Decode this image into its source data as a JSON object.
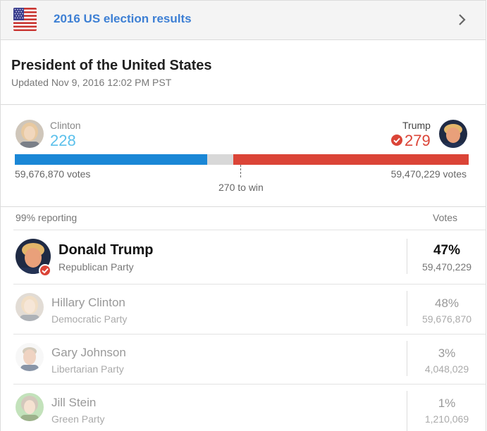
{
  "header": {
    "title": "2016 US election results",
    "flag_icon": "us-flag-icon",
    "chevron_icon": "chevron-right-icon"
  },
  "race": {
    "title": "President of the United States",
    "updated": "Updated Nov 9, 2016 12:02 PM PST"
  },
  "summary": {
    "left": {
      "name": "Clinton",
      "electoral": "228",
      "popular": "59,676,870 votes",
      "color": "#1a87d6",
      "votes_color": "#5bc0eb"
    },
    "right": {
      "name": "Trump",
      "electoral": "279",
      "popular": "59,470,229 votes",
      "color": "#db4437"
    },
    "to_win": "270 to win",
    "electoral_total": 538,
    "undecided_color": "#d8d8d8"
  },
  "table": {
    "reporting": "99% reporting",
    "votes_header": "Votes",
    "rows": [
      {
        "name": "Donald Trump",
        "party": "Republican Party",
        "pct": "47%",
        "votes": "59,470,229",
        "winner": true
      },
      {
        "name": "Hillary Clinton",
        "party": "Democratic Party",
        "pct": "48%",
        "votes": "59,676,870",
        "winner": false
      },
      {
        "name": "Gary Johnson",
        "party": "Libertarian Party",
        "pct": "3%",
        "votes": "4,048,029",
        "winner": false
      },
      {
        "name": "Jill Stein",
        "party": "Green Party",
        "pct": "1%",
        "votes": "1,210,069",
        "winner": false
      }
    ]
  }
}
